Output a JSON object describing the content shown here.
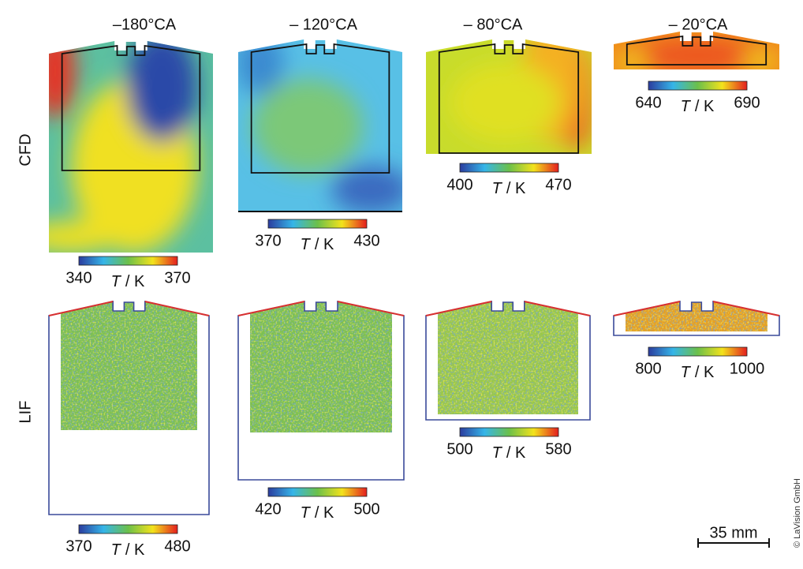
{
  "columns": [
    "–180°CA",
    "– 120°CA",
    "– 80°CA",
    "– 20°CA"
  ],
  "rows": [
    {
      "label": "CFD",
      "colorbars": [
        {
          "min": 340,
          "max": 370,
          "quantity": "T",
          "unit": "/ K"
        },
        {
          "min": 370,
          "max": 430,
          "quantity": "T",
          "unit": "/ K"
        },
        {
          "min": 400,
          "max": 470,
          "quantity": "T",
          "unit": "/ K"
        },
        {
          "min": 640,
          "max": 690,
          "quantity": "T",
          "unit": "/ K"
        }
      ]
    },
    {
      "label": "LIF",
      "colorbars": [
        {
          "min": 370,
          "max": 480,
          "quantity": "T",
          "unit": "/ K"
        },
        {
          "min": 420,
          "max": 500,
          "quantity": "T",
          "unit": "/ K"
        },
        {
          "min": 500,
          "max": 580,
          "quantity": "T",
          "unit": "/ K"
        },
        {
          "min": 800,
          "max": 1000,
          "quantity": "T",
          "unit": "/ K"
        }
      ]
    }
  ],
  "scale_bar": "35 mm",
  "credit": "© LaVision GmbH"
}
